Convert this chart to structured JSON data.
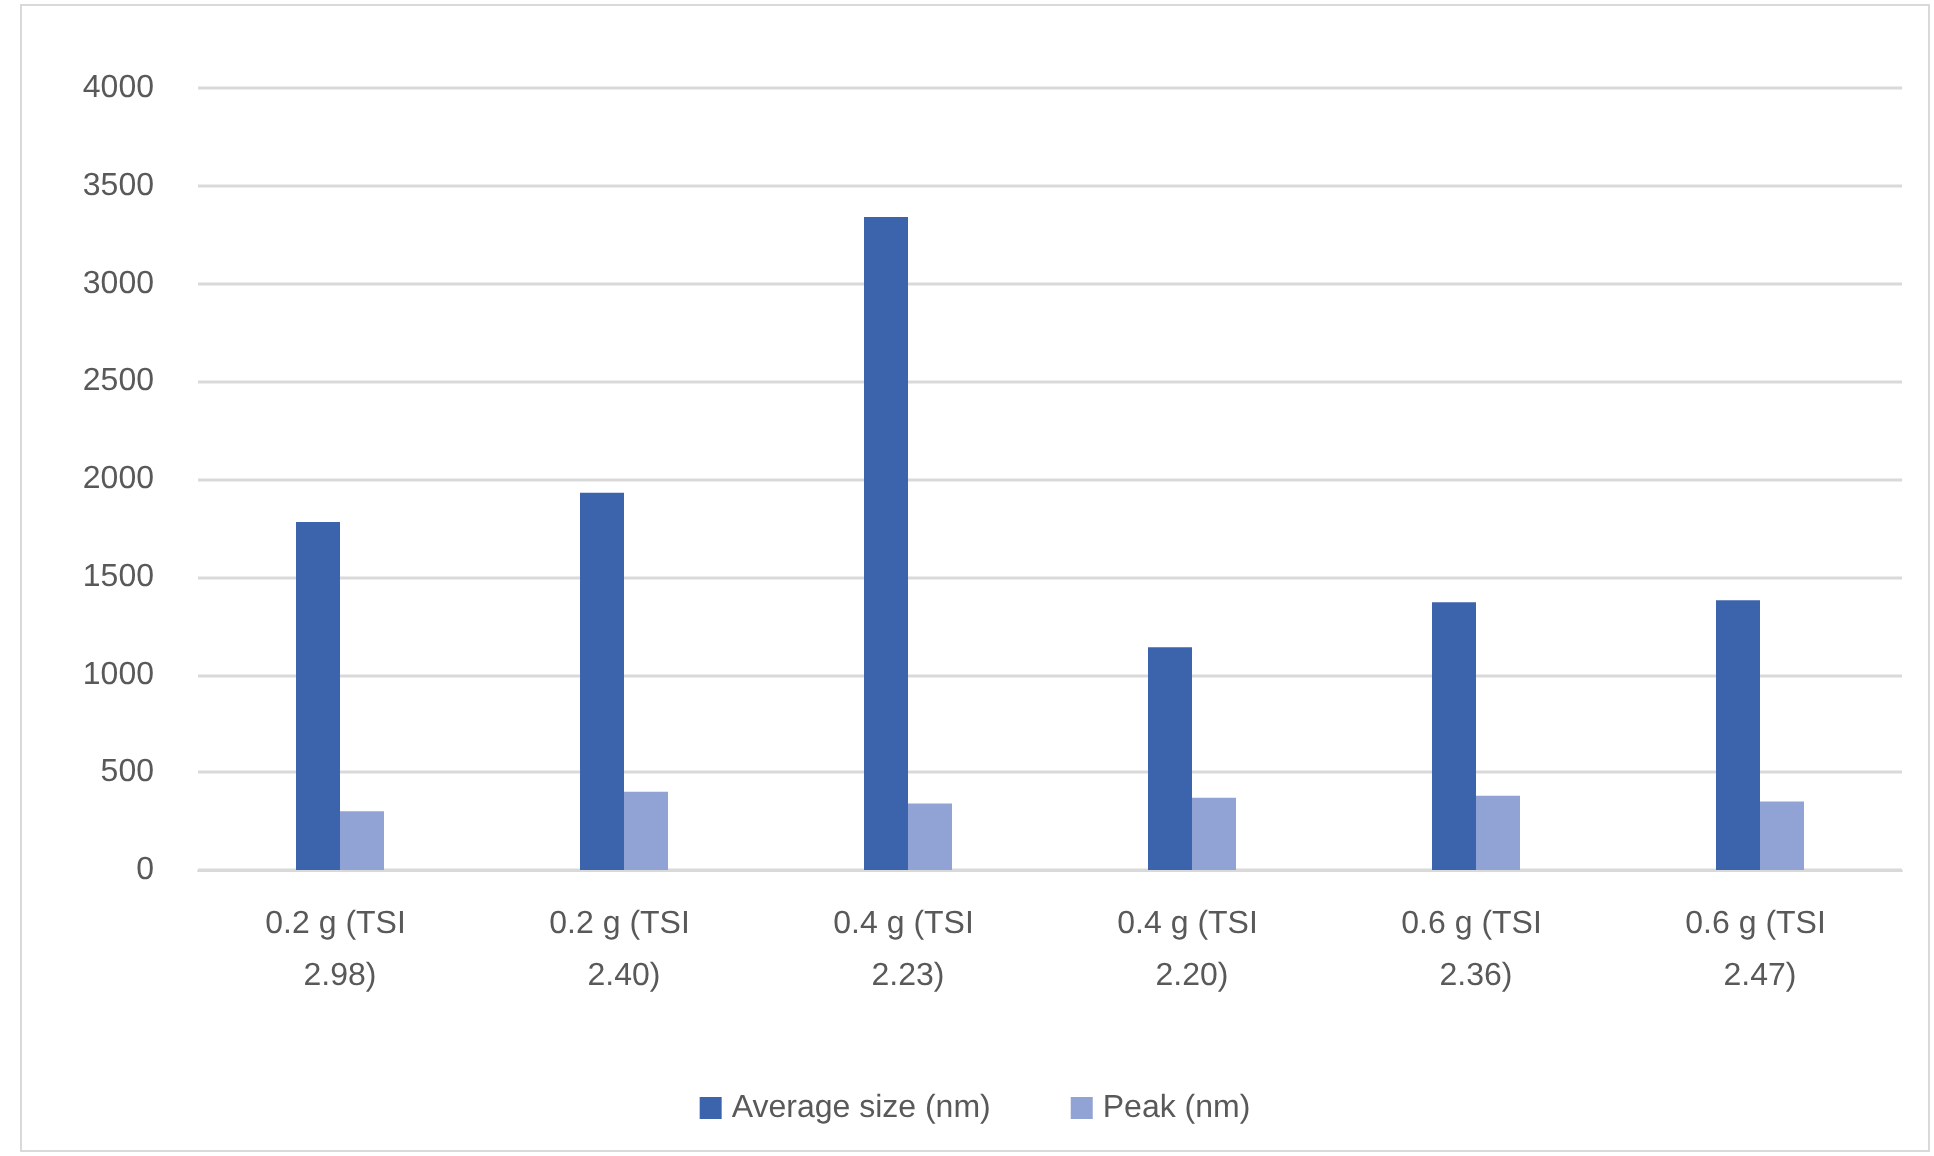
{
  "chart_data": {
    "type": "bar",
    "categories": [
      "0.2 g (TSI 2.98)",
      "0.2 g (TSI 2.40)",
      "0.4 g (TSI 2.23)",
      "0.4 g (TSI 2.20)",
      "0.6 g (TSI 2.36)",
      "0.6 g (TSI 2.47)"
    ],
    "series": [
      {
        "name": "Average size (nm)",
        "color": "#3c64ad",
        "values": [
          1780,
          1930,
          3340,
          1140,
          1370,
          1380
        ]
      },
      {
        "name": "Peak (nm)",
        "color": "#91a3d4",
        "values": [
          300,
          400,
          340,
          370,
          380,
          350
        ]
      }
    ],
    "ylim": [
      0,
      4000
    ],
    "yticks": [
      0,
      500,
      1000,
      1500,
      2000,
      2500,
      3000,
      3500,
      4000
    ],
    "grid": "y",
    "legend": "bottom"
  }
}
